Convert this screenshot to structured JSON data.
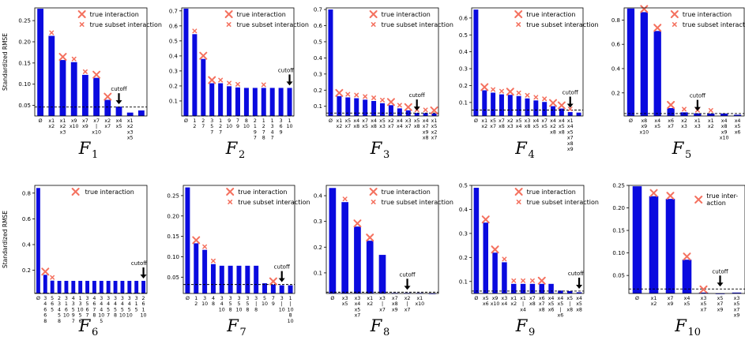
{
  "figure": {
    "ylabel": "Standardized RMSE",
    "legend_true": "true interaction",
    "legend_subset": "true subset interaction",
    "legend_true_wrapped": [
      "true inter-",
      "action"
    ],
    "cutoff_label": "cutoff"
  },
  "colors": {
    "bar": "#0a0adf",
    "marker": "#f4715f",
    "cutoff": "#000000"
  },
  "chart_data": [
    {
      "type": "bar",
      "title_main": "F",
      "title_sub": "1",
      "ylim": [
        0.025,
        0.28
      ],
      "yticks": [
        0.05,
        0.1,
        0.15,
        0.2,
        0.25
      ],
      "tick_digits": 2,
      "cutoff": 0.046,
      "cutoff_index": 7,
      "legend": "both",
      "categories": [
        "Ø",
        "x1 x2",
        "x1 x2 x3",
        "x9 x10",
        "x7 x9",
        "x7 | x10",
        "x2 x7",
        "x4 x5",
        "x1 x2 x3 x5",
        ""
      ],
      "values": [
        0.278,
        0.214,
        0.157,
        0.152,
        0.122,
        0.115,
        0.063,
        0.047,
        0.033,
        0.038
      ],
      "markers": [
        null,
        "subset",
        "true",
        "subset",
        "subset",
        "true",
        "true",
        null,
        null,
        null
      ]
    },
    {
      "type": "bar",
      "title_main": "F",
      "title_sub": "2",
      "ylim": [
        0.0,
        0.72
      ],
      "yticks": [
        0.1,
        0.2,
        0.3,
        0.4,
        0.5,
        0.6,
        0.7
      ],
      "tick_digits": 1,
      "cutoff": 0.0,
      "cutoff_index": 12,
      "legend": "both",
      "categories": [
        "Ø",
        "1 2",
        "2 7",
        "3 5 7",
        "1 2 7",
        "9 10",
        "7 9",
        "8 10",
        "2 1 9 7",
        "1 2 7 8",
        "1 3 4 7",
        "3 6 9",
        "1 10"
      ],
      "values": [
        0.715,
        0.545,
        0.38,
        0.218,
        0.218,
        0.198,
        0.19,
        0.187,
        0.187,
        0.187,
        0.187,
        0.187,
        0.187
      ],
      "markers": [
        null,
        "subset",
        "true",
        "true",
        "subset",
        "subset",
        "subset",
        null,
        null,
        "subset",
        null,
        null,
        null
      ]
    },
    {
      "type": "bar",
      "title_main": "F",
      "title_sub": "3",
      "ylim": [
        0.04,
        0.71
      ],
      "yticks": [
        0.1,
        0.2,
        0.3,
        0.4,
        0.5,
        0.6,
        0.7
      ],
      "tick_digits": 1,
      "cutoff": 0.058,
      "cutoff_index": 10,
      "legend": "both",
      "categories": [
        "Ø",
        "x1 x2",
        "x5 x7",
        "x4 x8",
        "x7 x5",
        "x4 x8",
        "x5 x3",
        "x2 x7",
        "x4 x4",
        "x3 x7",
        "x5 x8",
        "x4 x7 x9 x8",
        "x1 x5 x2 x7"
      ],
      "values": [
        0.7,
        0.163,
        0.155,
        0.15,
        0.141,
        0.133,
        0.119,
        0.107,
        0.087,
        0.075,
        0.059,
        0.058,
        0.055
      ],
      "markers": [
        null,
        "true",
        "subset",
        "subset",
        "subset",
        "subset",
        "subset",
        "true",
        "subset",
        "true",
        "subset",
        "subset",
        "true"
      ]
    },
    {
      "type": "bar",
      "title_main": "F",
      "title_sub": "4",
      "ylim": [
        0.02,
        0.66
      ],
      "yticks": [
        0.1,
        0.2,
        0.3,
        0.4,
        0.5,
        0.6
      ],
      "tick_digits": 1,
      "cutoff": 0.055,
      "cutoff_index": 11,
      "legend": "both",
      "categories": [
        "Ø",
        "x1 x2",
        "x5 x7",
        "x7 x8",
        "x2 x3",
        "x5 x4",
        "x3 x8",
        "x4 x5",
        "x7 x5",
        "x4 x2 x8",
        "x4 x5 x8",
        "x1 x4 x5 x7 x8 x9",
        ""
      ],
      "values": [
        0.65,
        0.172,
        0.158,
        0.148,
        0.145,
        0.138,
        0.124,
        0.112,
        0.103,
        0.078,
        0.064,
        0.043,
        0.04
      ],
      "markers": [
        null,
        "true",
        "subset",
        "subset",
        "true",
        "subset",
        "subset",
        "subset",
        "subset",
        "true",
        "true",
        "subset",
        null
      ]
    },
    {
      "type": "bar",
      "title_main": "F",
      "title_sub": "5",
      "ylim": [
        0.01,
        0.9
      ],
      "yticks": [
        0.2,
        0.4,
        0.6,
        0.8
      ],
      "tick_digits": 1,
      "cutoff": 0.03,
      "cutoff_index": 5,
      "legend": "both",
      "categories": [
        "Ø",
        "x8 x9 x10",
        "x4 x5",
        "x6 x7",
        "x2 x3",
        "x1 x3",
        "x1 x2",
        "x4 x8 x9 x10",
        "x4 x5 x6"
      ],
      "values": [
        0.895,
        0.865,
        0.71,
        0.075,
        0.04,
        0.032,
        0.03,
        0.03,
        0.02
      ],
      "markers": [
        null,
        "true",
        "true",
        "true",
        "subset",
        "subset",
        "subset",
        null,
        null
      ]
    },
    {
      "type": "bar",
      "title_main": "F",
      "title_sub": "6",
      "ylim": [
        0.02,
        0.86
      ],
      "yticks": [
        0.2,
        0.4,
        0.6,
        0.8
      ],
      "tick_digits": 1,
      "cutoff": 0.022,
      "cutoff_index": 15,
      "legend": "true",
      "categories": [
        "Ø",
        "3 4 6 6 8",
        "5 6 5",
        "2 3 4 5 8",
        "3 1 6 10",
        "4 3 5 9 7",
        "1 3 10 5 6",
        "3 5 6 7",
        "4 6 7 8",
        "3 4 4 10 5",
        "3 4 5 7",
        "3 4 5 8",
        "3 4 5 10",
        "3 4 5 10",
        "3 1 5",
        "2 6 1 10"
      ],
      "values": [
        0.84,
        0.165,
        0.12,
        0.118,
        0.118,
        0.118,
        0.118,
        0.118,
        0.118,
        0.118,
        0.118,
        0.118,
        0.118,
        0.118,
        0.118,
        0.118
      ],
      "markers": [
        null,
        "true",
        "subset",
        null,
        null,
        null,
        null,
        null,
        null,
        null,
        null,
        null,
        null,
        null,
        null,
        null
      ]
    },
    {
      "type": "bar",
      "title_main": "F",
      "title_sub": "7",
      "ylim": [
        0.01,
        0.275
      ],
      "yticks": [
        0.05,
        0.1,
        0.15,
        0.2,
        0.25
      ],
      "tick_digits": 2,
      "cutoff": 0.032,
      "cutoff_index": 11,
      "legend": "both",
      "categories": [
        "Ø",
        "1 2",
        "3 10",
        "4 8",
        "3 4 10",
        "3 5 8",
        "3 5 10",
        "3 5 8",
        "3 | 8",
        "5 10",
        "7 9",
        "3 | 10",
        "1 | 10 8 10"
      ],
      "values": [
        0.27,
        0.133,
        0.117,
        0.082,
        0.078,
        0.078,
        0.078,
        0.078,
        0.078,
        0.035,
        0.032,
        0.03,
        0.03
      ],
      "markers": [
        null,
        "true",
        "subset",
        "subset",
        null,
        null,
        null,
        null,
        null,
        null,
        "true",
        null,
        null
      ]
    },
    {
      "type": "bar",
      "title_main": "F",
      "title_sub": "8",
      "ylim": [
        0.02,
        0.44
      ],
      "yticks": [
        0.1,
        0.2,
        0.3,
        0.4
      ],
      "tick_digits": 1,
      "cutoff": 0.025,
      "cutoff_index": 6,
      "legend": "both_small",
      "categories": [
        "Ø",
        "x3 x5",
        "x3 x4 x5 x7",
        "x1 x2",
        "x3 | x7",
        "x7 x8 x9",
        "x2 | x7",
        "x1 x10",
        ""
      ],
      "values": [
        0.43,
        0.375,
        0.28,
        0.225,
        0.17,
        0.022,
        0.022,
        0.022,
        0.02
      ],
      "markers": [
        null,
        "subset",
        "true",
        "true",
        null,
        null,
        null,
        null,
        null
      ]
    },
    {
      "type": "bar",
      "title_main": "F",
      "title_sub": "9",
      "ylim": [
        0.05,
        0.5
      ],
      "yticks": [
        0.1,
        0.2,
        0.3,
        0.4,
        0.5
      ],
      "tick_digits": 1,
      "cutoff": 0.06,
      "cutoff_index": 11,
      "legend": "both",
      "categories": [
        "Ø",
        "x5 x6",
        "x9 x10",
        "x3 x4",
        "x1 x2",
        "x1 | x4",
        "x7 x8",
        "x6 x7 x8",
        "x4 x5 x6",
        "x4 x5 | x6",
        "x5 | x8",
        "x4 x5 x8"
      ],
      "values": [
        0.49,
        0.345,
        0.22,
        0.18,
        0.09,
        0.09,
        0.09,
        0.09,
        0.09,
        0.062,
        0.06,
        0.055
      ],
      "markers": [
        null,
        "true",
        "true",
        "subset",
        "subset",
        "subset",
        "subset",
        "true",
        null,
        null,
        null,
        null
      ]
    },
    {
      "type": "bar",
      "title_main": "F",
      "title_sub": "10",
      "ylim": [
        0.01,
        0.25
      ],
      "yticks": [
        0.05,
        0.1,
        0.15,
        0.2,
        0.25
      ],
      "tick_digits": 2,
      "cutoff": 0.02,
      "cutoff_index": 5,
      "legend": "true_wrapped",
      "categories": [
        "Ø",
        "x1 x2",
        "x7 x9",
        "x4 x5",
        "x3 x5 x7",
        "x5 x7 x9",
        "x3 x5 x7 x9"
      ],
      "values": [
        0.248,
        0.226,
        0.22,
        0.085,
        0.012,
        0.01,
        0.012
      ],
      "markers": [
        null,
        "true",
        "true",
        "true",
        "true",
        null,
        null
      ]
    }
  ]
}
